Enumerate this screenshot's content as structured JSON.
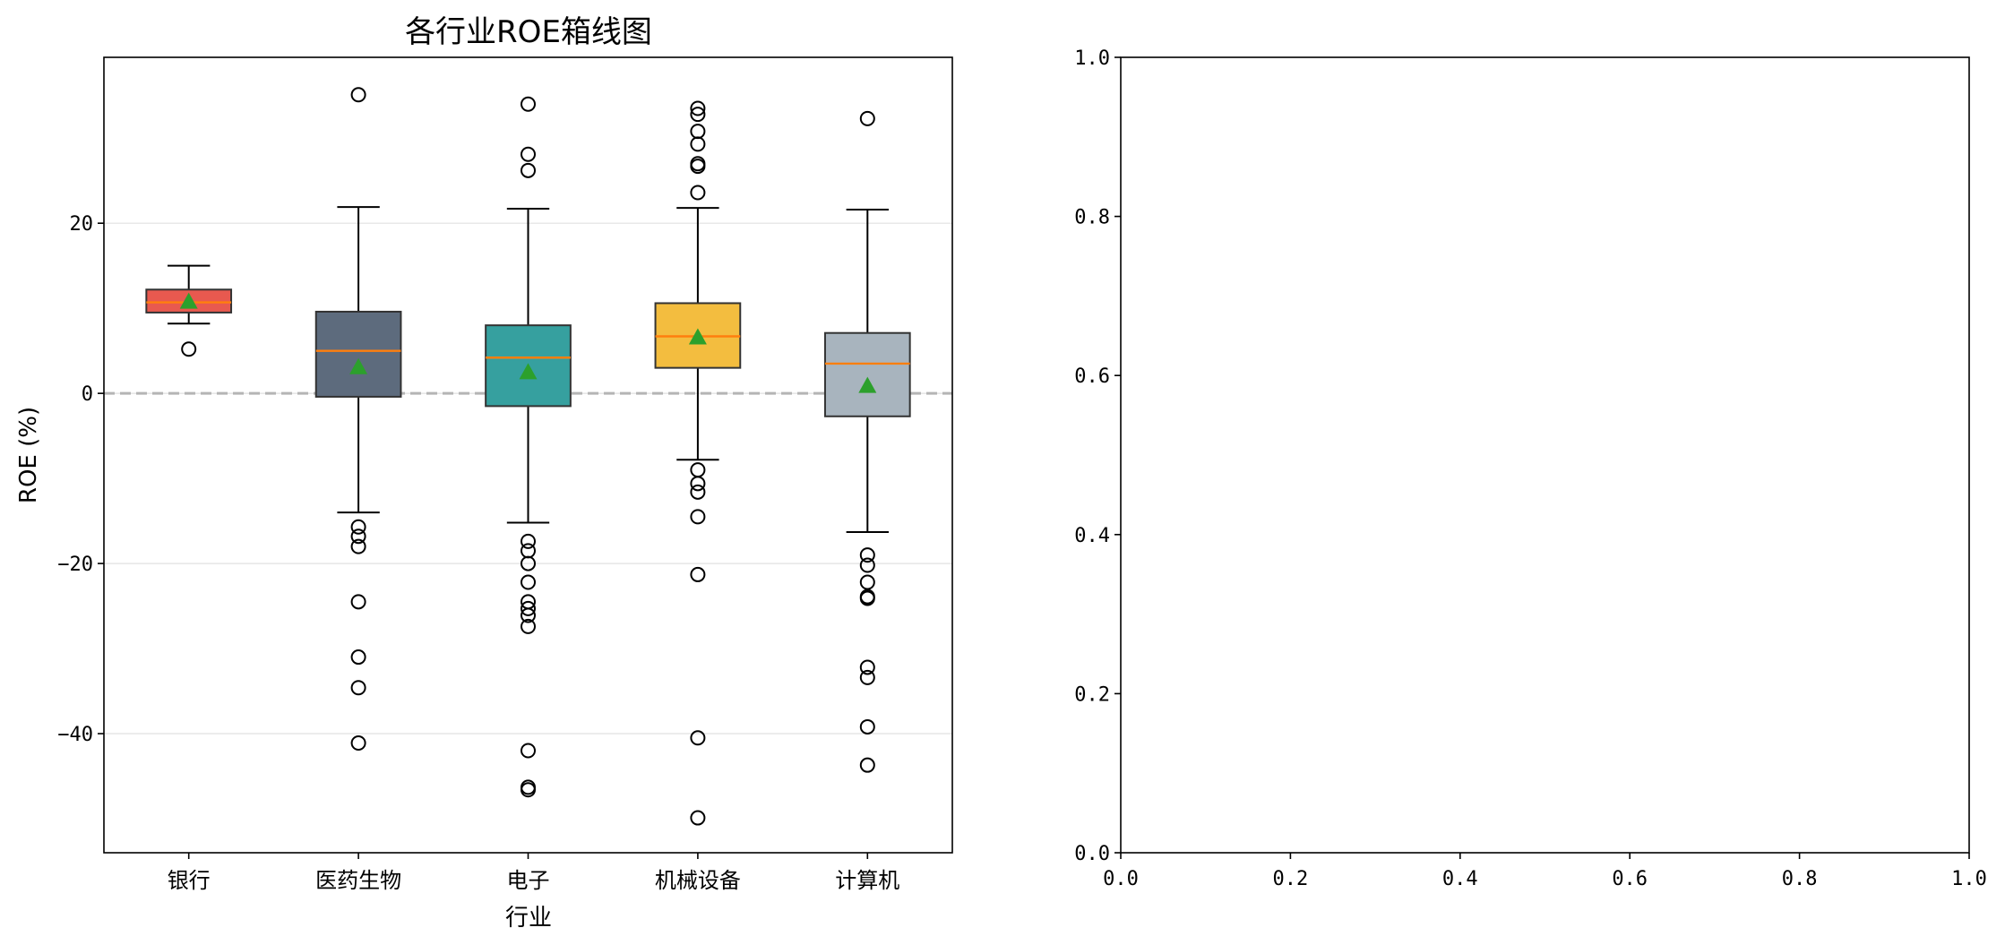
{
  "chart_data": [
    {
      "type": "box",
      "title": "各行业ROE箱线图",
      "xlabel": "行业",
      "ylabel": "ROE (%)",
      "ylim": [
        -54,
        39.5
      ],
      "yticks": [
        20,
        0,
        -20,
        -40
      ],
      "ytick_labels": [
        "20",
        "0",
        "−20",
        "−40"
      ],
      "grid": "y",
      "reference_line": {
        "y": 0,
        "style": "dashed"
      },
      "categories": [
        "银行",
        "医药生物",
        "电子",
        "机械设备",
        "计算机"
      ],
      "colors": [
        "#e8594f",
        "#5d6b7d",
        "#36a09f",
        "#f3bd3f",
        "#a8b4be"
      ],
      "median_color": "#ff7f0e",
      "mean_color": "#2ca02c",
      "boxes": [
        {
          "whisker_low": 8.2,
          "q1": 9.5,
          "median": 10.7,
          "q3": 12.2,
          "whisker_high": 15.0,
          "mean": 10.8,
          "outliers": [
            5.2
          ]
        },
        {
          "whisker_low": -14.0,
          "q1": -0.4,
          "median": 5.0,
          "q3": 9.6,
          "whisker_high": 21.9,
          "mean": 3.1,
          "outliers": [
            35.1,
            -15.7,
            -16.8,
            -18.0,
            -24.5,
            -31.0,
            -34.6,
            -41.1
          ]
        },
        {
          "whisker_low": -15.2,
          "q1": -1.5,
          "median": 4.2,
          "q3": 8.0,
          "whisker_high": 21.7,
          "mean": 2.5,
          "outliers": [
            34.0,
            28.1,
            26.2,
            -17.4,
            -18.5,
            -20.0,
            -22.2,
            -24.5,
            -25.3,
            -26.1,
            -27.4,
            -42.0,
            -46.3,
            -46.6
          ]
        },
        {
          "whisker_low": -7.8,
          "q1": 3.0,
          "median": 6.7,
          "q3": 10.6,
          "whisker_high": 21.8,
          "mean": 6.6,
          "outliers": [
            33.5,
            32.8,
            30.8,
            29.3,
            27.0,
            26.7,
            23.6,
            -9.0,
            -10.6,
            -11.6,
            -14.5,
            -21.3,
            -40.5,
            -49.9
          ]
        },
        {
          "whisker_low": -16.3,
          "q1": -2.7,
          "median": 3.5,
          "q3": 7.1,
          "whisker_high": 21.6,
          "mean": 0.9,
          "outliers": [
            32.3,
            -19.0,
            -20.2,
            -22.2,
            -23.9,
            -24.1,
            -32.2,
            -33.4,
            -39.2,
            -43.7
          ]
        }
      ]
    },
    {
      "type": "empty",
      "xlim": [
        0,
        1
      ],
      "ylim": [
        0,
        1
      ],
      "xtick_labels": [
        "0.0",
        "0.2",
        "0.4",
        "0.6",
        "0.8",
        "1.0"
      ],
      "ytick_labels": [
        "0.0",
        "0.2",
        "0.4",
        "0.6",
        "0.8",
        "1.0"
      ]
    }
  ]
}
